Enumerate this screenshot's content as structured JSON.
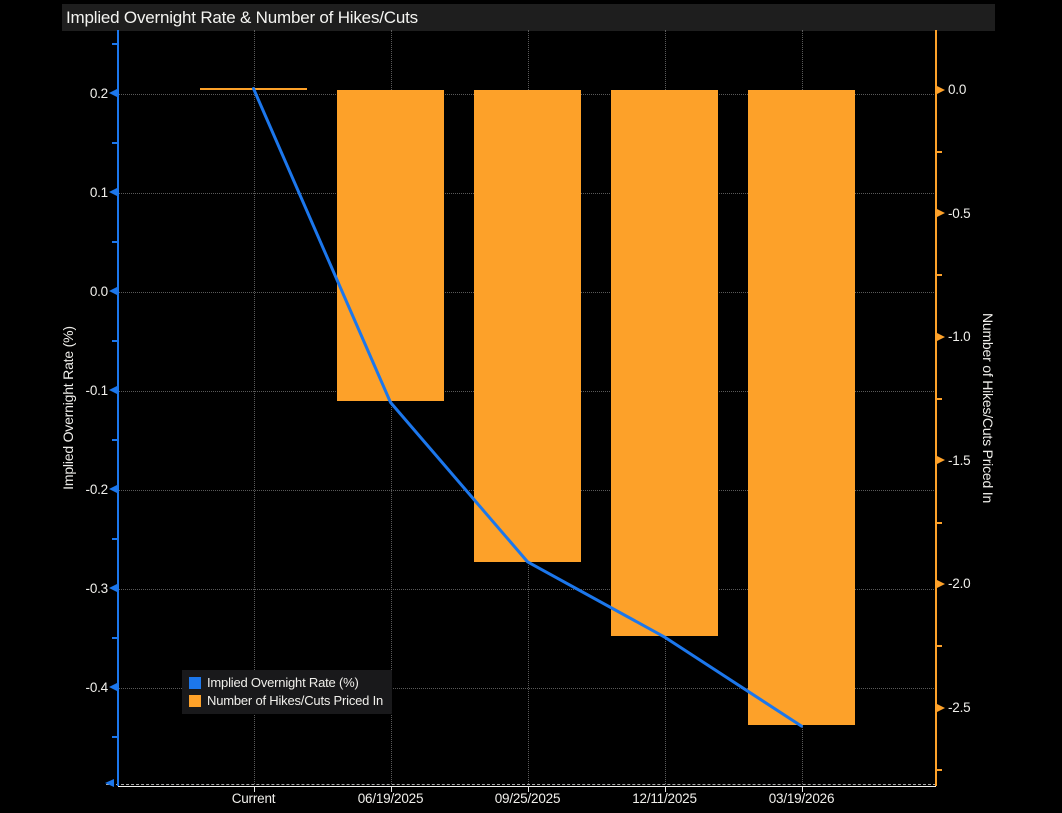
{
  "window": {
    "title": "Implied Overnight Rate & Number of Hikes/Cuts"
  },
  "colors": {
    "background": "#000000",
    "title_bar_bg": "#1e1e1e",
    "title_text": "#f4f4f1",
    "line_blue": "#1c77ec",
    "bar_orange": "#fda129",
    "grid_dotted": "#5a5a5a",
    "baseline_dashed": "#a9a9a9",
    "axis_text": "#f0efeb",
    "legend_bg": "#19191b",
    "white_axis": "#f2f2ef"
  },
  "chart_data": {
    "type": "combo-bar-line",
    "title": "Implied Overnight Rate & Number of Hikes/Cuts",
    "categories": [
      "Current",
      "06/19/2025",
      "09/25/2025",
      "12/11/2025",
      "03/19/2026"
    ],
    "series": [
      {
        "name": "Implied Overnight Rate (%)",
        "type": "line",
        "axis": "left",
        "color": "#1c77ec",
        "values": [
          0.205,
          -0.112,
          -0.273,
          -0.349,
          -0.439
        ]
      },
      {
        "name": "Number of Hikes/Cuts Priced In",
        "type": "bar",
        "axis": "right",
        "color": "#fda129",
        "values": [
          0.0,
          -1.26,
          -1.91,
          -2.21,
          -2.57
        ]
      }
    ],
    "left_axis": {
      "label": "Implied Overnight Rate (%)",
      "tick_labels": [
        "0.2",
        "0.1",
        "0.0",
        "-0.1",
        "-0.2",
        "-0.3",
        "-0.4"
      ],
      "tick_values": [
        0.2,
        0.1,
        0.0,
        -0.1,
        -0.2,
        -0.3,
        -0.4
      ],
      "range": [
        -0.5,
        0.265
      ]
    },
    "right_axis": {
      "label": "Number of Hikes/Cuts Priced In",
      "tick_labels": [
        "0.0",
        "-0.5",
        "-1.0",
        "-1.5",
        "-2.0",
        "-2.5"
      ],
      "tick_values": [
        0.0,
        -0.5,
        -1.0,
        -1.5,
        -2.0,
        -2.5
      ],
      "range": [
        -2.82,
        0.24
      ]
    },
    "legend": {
      "position": "bottom-left",
      "entries": [
        {
          "label": "Implied Overnight Rate (%)",
          "color": "#1c77ec"
        },
        {
          "label": "Number of Hikes/Cuts Priced In",
          "color": "#fda129"
        }
      ]
    },
    "grid": true
  }
}
